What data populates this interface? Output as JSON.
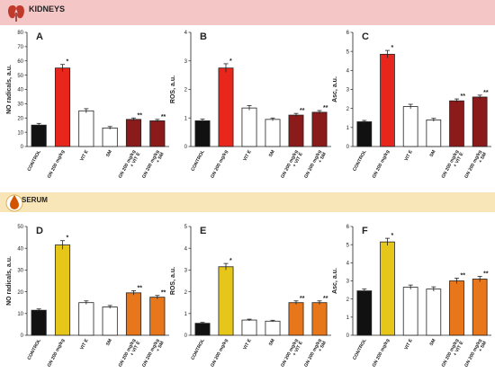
{
  "sections": [
    {
      "label": "KIDNEYS",
      "band_color": "#f4c6c6",
      "icon": "kidneys-icon",
      "icon_color": "#c0392b"
    },
    {
      "label": "SERUM",
      "band_color": "#f8e6b8",
      "icon": "blood-drop-icon",
      "icon_color": "#d35400"
    }
  ],
  "chart_data": [
    {
      "type": "bar",
      "panel": "A",
      "section": "KIDNEYS",
      "ylabel": "NO radicals, a.u.",
      "ylim": [
        0,
        80
      ],
      "yticks": [
        0,
        10,
        20,
        30,
        40,
        50,
        60,
        70,
        80
      ],
      "categories": [
        "CONTROL",
        "GN 200 mg/kg",
        "VIT E",
        "SM",
        "GN 200 mg/kg + VIT E",
        "GN 200 mg/kg + SM"
      ],
      "values": [
        15,
        55,
        25,
        13,
        19,
        18
      ],
      "errors": [
        1.2,
        2.5,
        1.5,
        1.0,
        1.0,
        1.0
      ],
      "significance": [
        "",
        "*",
        "",
        "",
        "**",
        "**"
      ],
      "colors": [
        "#111111",
        "#e8261b",
        "#ffffff",
        "#ffffff",
        "#8b1a1a",
        "#8b1a1a"
      ]
    },
    {
      "type": "bar",
      "panel": "B",
      "section": "KIDNEYS",
      "ylabel": "ROS, a.u.",
      "ylim": [
        0,
        4
      ],
      "yticks": [
        0,
        1,
        2,
        3,
        4
      ],
      "categories": [
        "CONTROL",
        "GN 200 mg/kg",
        "VIT E",
        "SM",
        "GN 200 mg/kg + VIT E",
        "GN 200 mg/kg + SM"
      ],
      "values": [
        0.9,
        2.75,
        1.35,
        0.95,
        1.1,
        1.2
      ],
      "errors": [
        0.06,
        0.15,
        0.08,
        0.05,
        0.06,
        0.06
      ],
      "significance": [
        "",
        "*",
        "",
        "",
        "**",
        "**"
      ],
      "colors": [
        "#111111",
        "#e8261b",
        "#ffffff",
        "#ffffff",
        "#8b1a1a",
        "#8b1a1a"
      ]
    },
    {
      "type": "bar",
      "panel": "C",
      "section": "KIDNEYS",
      "ylabel": "Asc, a.u.",
      "ylim": [
        0,
        6
      ],
      "yticks": [
        0,
        1,
        2,
        3,
        4,
        5,
        6
      ],
      "categories": [
        "CONTROL",
        "GN 200 mg/kg",
        "VIT E",
        "SM",
        "GN 200 mg/kg + VIT E",
        "GN 200 mg/kg + SM"
      ],
      "values": [
        1.3,
        4.85,
        2.1,
        1.4,
        2.4,
        2.6
      ],
      "errors": [
        0.07,
        0.2,
        0.12,
        0.08,
        0.1,
        0.1
      ],
      "significance": [
        "",
        "*",
        "",
        "",
        "**",
        "**"
      ],
      "colors": [
        "#111111",
        "#e8261b",
        "#ffffff",
        "#ffffff",
        "#8b1a1a",
        "#8b1a1a"
      ]
    },
    {
      "type": "bar",
      "panel": "D",
      "section": "SERUM",
      "ylabel": "NO radicals, a.u.",
      "ylim": [
        0,
        50
      ],
      "yticks": [
        0,
        10,
        20,
        30,
        40,
        50
      ],
      "categories": [
        "CONTROL",
        "GN 200 mg/kg",
        "VIT E",
        "SM",
        "GN 200 mg/kg + VIT E",
        "GN 200 mg/kg + SM"
      ],
      "values": [
        11.5,
        41.5,
        15,
        13,
        19.5,
        17.5
      ],
      "errors": [
        0.6,
        2.0,
        0.8,
        0.7,
        1.0,
        0.8
      ],
      "significance": [
        "",
        "*",
        "",
        "",
        "**",
        "**"
      ],
      "colors": [
        "#111111",
        "#e6c619",
        "#ffffff",
        "#ffffff",
        "#e8761b",
        "#e8761b"
      ]
    },
    {
      "type": "bar",
      "panel": "E",
      "section": "SERUM",
      "ylabel": "ROS, a.u.",
      "ylim": [
        0,
        5
      ],
      "yticks": [
        0,
        1,
        2,
        3,
        4,
        5
      ],
      "categories": [
        "CONTROL",
        "GN 200 mg/kg",
        "VIT E",
        "SM",
        "GN 200 mg/kg + VIT E",
        "GN 200 mg/kg + SM"
      ],
      "values": [
        0.55,
        3.15,
        0.7,
        0.65,
        1.5,
        1.5
      ],
      "errors": [
        0.04,
        0.15,
        0.04,
        0.04,
        0.08,
        0.08
      ],
      "significance": [
        "",
        "*",
        "",
        "",
        "**",
        "**"
      ],
      "colors": [
        "#111111",
        "#e6c619",
        "#ffffff",
        "#ffffff",
        "#e8761b",
        "#e8761b"
      ]
    },
    {
      "type": "bar",
      "panel": "F",
      "section": "SERUM",
      "ylabel": "Asc, a.u.",
      "ylim": [
        0,
        6
      ],
      "yticks": [
        0,
        1,
        2,
        3,
        4,
        5,
        6
      ],
      "categories": [
        "CONTROL",
        "GN 200 mg/kg",
        "VIT E",
        "SM",
        "GN 200 mg/kg + VIT E",
        "GN 200 mg/kg + SM"
      ],
      "values": [
        2.45,
        5.15,
        2.65,
        2.55,
        3.0,
        3.1
      ],
      "errors": [
        0.1,
        0.2,
        0.12,
        0.12,
        0.15,
        0.15
      ],
      "significance": [
        "",
        "*",
        "",
        "",
        "**",
        "**"
      ],
      "colors": [
        "#111111",
        "#e6c619",
        "#ffffff",
        "#ffffff",
        "#e8761b",
        "#e8761b"
      ]
    }
  ]
}
